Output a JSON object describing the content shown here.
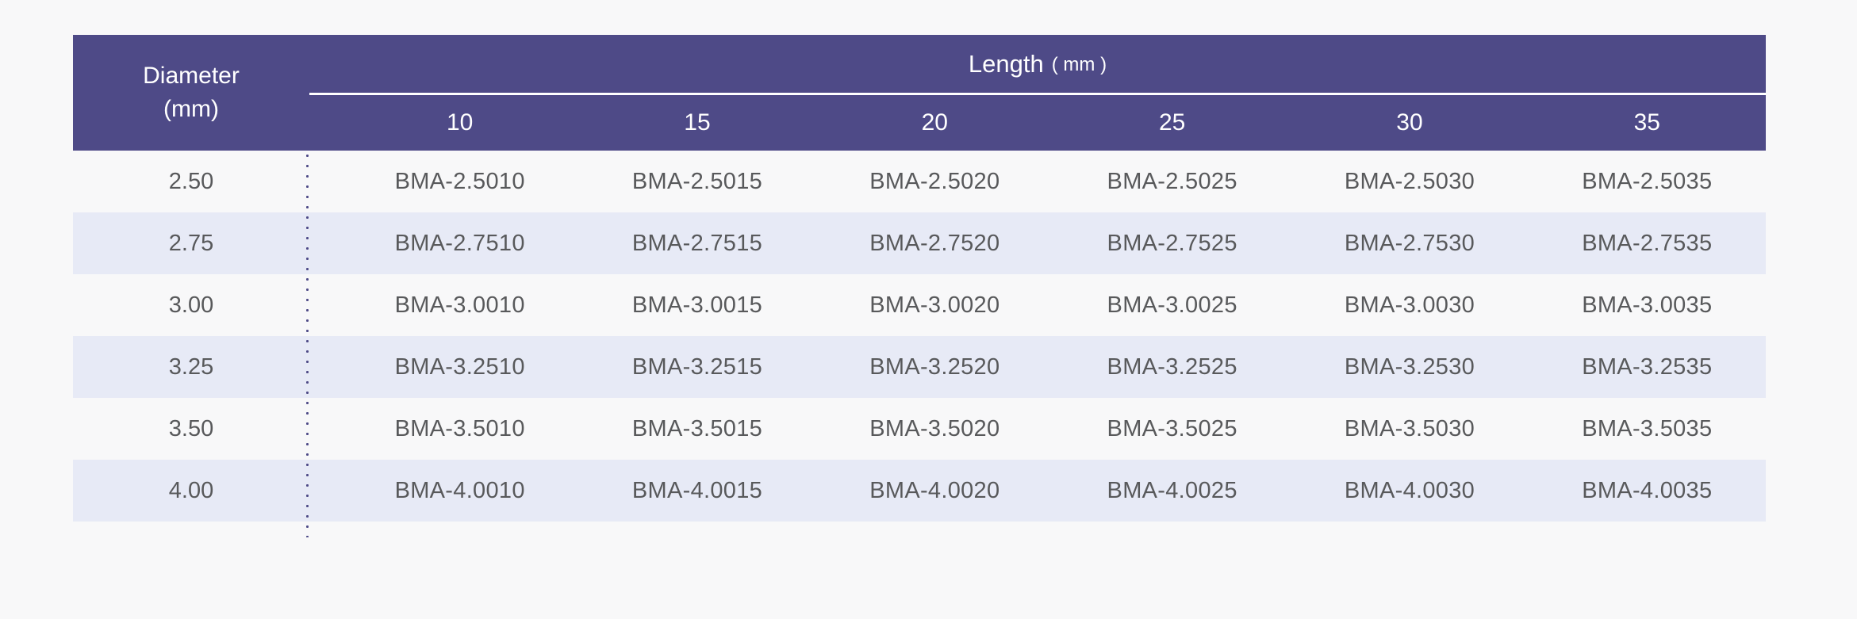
{
  "page": {
    "background": "#f8f8f9"
  },
  "table": {
    "colors": {
      "header_bg": "#4e4a87",
      "header_text": "#ffffff",
      "alt_row_bg": "#e7eaf6",
      "body_text": "#58595b",
      "header_rule": "#ffffff",
      "dotted_divider": "#4e4a87"
    },
    "diameter_header": {
      "line1": "Diameter",
      "line2": "(mm)"
    },
    "length_header": {
      "label": "Length",
      "unit": "( mm )"
    },
    "length_columns": [
      "10",
      "15",
      "20",
      "25",
      "30",
      "35"
    ],
    "rows": [
      {
        "diameter": "2.50",
        "codes": [
          "BMA-2.5010",
          "BMA-2.5015",
          "BMA-2.5020",
          "BMA-2.5025",
          "BMA-2.5030",
          "BMA-2.5035"
        ]
      },
      {
        "diameter": "2.75",
        "codes": [
          "BMA-2.7510",
          "BMA-2.7515",
          "BMA-2.7520",
          "BMA-2.7525",
          "BMA-2.7530",
          "BMA-2.7535"
        ]
      },
      {
        "diameter": "3.00",
        "codes": [
          "BMA-3.0010",
          "BMA-3.0015",
          "BMA-3.0020",
          "BMA-3.0025",
          "BMA-3.0030",
          "BMA-3.0035"
        ]
      },
      {
        "diameter": "3.25",
        "codes": [
          "BMA-3.2510",
          "BMA-3.2515",
          "BMA-3.2520",
          "BMA-3.2525",
          "BMA-3.2530",
          "BMA-3.2535"
        ]
      },
      {
        "diameter": "3.50",
        "codes": [
          "BMA-3.5010",
          "BMA-3.5015",
          "BMA-3.5020",
          "BMA-3.5025",
          "BMA-3.5030",
          "BMA-3.5035"
        ]
      },
      {
        "diameter": "4.00",
        "codes": [
          "BMA-4.0010",
          "BMA-4.0015",
          "BMA-4.0020",
          "BMA-4.0025",
          "BMA-4.0030",
          "BMA-4.0035"
        ]
      }
    ]
  }
}
